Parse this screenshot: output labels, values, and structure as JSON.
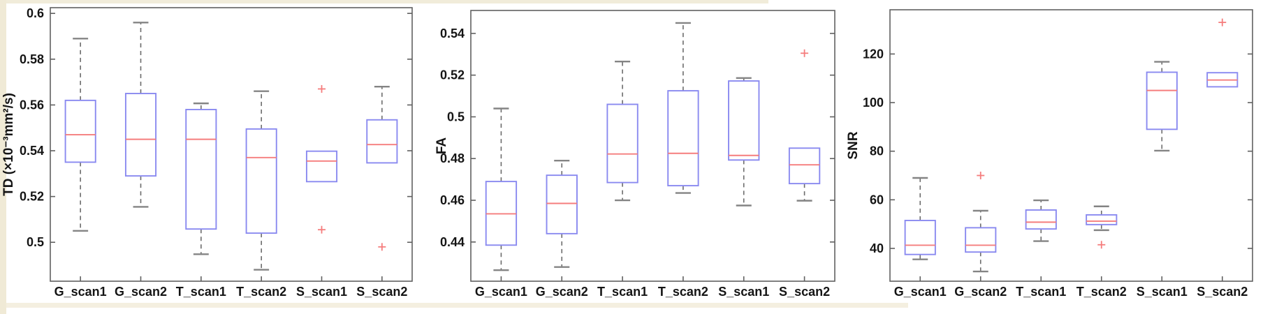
{
  "figure": {
    "margin_color": "#f0ead6",
    "background": "#ffffff",
    "axis_color": "#606060",
    "box_color": "#8a8af0",
    "median_color": "#f57d7d",
    "whisker_color": "#6b6b6b",
    "cap_color": "#848484",
    "outlier_color": "#f57d7d",
    "text_color": "#141414"
  },
  "chart_data": [
    {
      "type": "boxplot",
      "title": "",
      "ylabel": "TD (×10⁻³mm²/s)",
      "xlabel": "",
      "grid": false,
      "legend": null,
      "categories": [
        "G_scan1",
        "G_scan2",
        "T_scan1",
        "T_scan2",
        "S_scan1",
        "S_scan2"
      ],
      "yticks": [
        0.5,
        0.52,
        0.54,
        0.56,
        0.58,
        0.6
      ],
      "ytick_labels": [
        "0.5",
        "0.52",
        "0.54",
        "0.56",
        "0.58",
        "0.6"
      ],
      "ylim": [
        0.483,
        0.6025
      ],
      "boxes": [
        {
          "category": "G_scan1",
          "whisker_low": 0.505,
          "q1": 0.535,
          "median": 0.547,
          "q3": 0.562,
          "whisker_high": 0.589,
          "outliers": []
        },
        {
          "category": "G_scan2",
          "whisker_low": 0.5155,
          "q1": 0.529,
          "median": 0.545,
          "q3": 0.565,
          "whisker_high": 0.596,
          "outliers": []
        },
        {
          "category": "T_scan1",
          "whisker_low": 0.4948,
          "q1": 0.5058,
          "median": 0.545,
          "q3": 0.558,
          "whisker_high": 0.5607,
          "outliers": []
        },
        {
          "category": "T_scan2",
          "whisker_low": 0.488,
          "q1": 0.504,
          "median": 0.537,
          "q3": 0.5495,
          "whisker_high": 0.566,
          "outliers": []
        },
        {
          "category": "S_scan1",
          "whisker_low": 0.5265,
          "q1": 0.5265,
          "median": 0.5355,
          "q3": 0.5398,
          "whisker_high": 0.5398,
          "outliers": [
            0.567,
            0.5055
          ]
        },
        {
          "category": "S_scan2",
          "whisker_low": 0.5347,
          "q1": 0.5347,
          "median": 0.5427,
          "q3": 0.5535,
          "whisker_high": 0.568,
          "outliers": [
            0.498
          ]
        }
      ]
    },
    {
      "type": "boxplot",
      "title": "",
      "ylabel": "FA",
      "xlabel": "",
      "grid": false,
      "legend": null,
      "categories": [
        "G_scan1",
        "G_scan2",
        "T_scan1",
        "T_scan2",
        "S_scan1",
        "S_scan2"
      ],
      "yticks": [
        0.44,
        0.46,
        0.48,
        0.5,
        0.52,
        0.54
      ],
      "ytick_labels": [
        "0.44",
        "0.46",
        "0.48",
        "0.5",
        "0.52",
        "0.54"
      ],
      "ylim": [
        0.4212,
        0.551
      ],
      "boxes": [
        {
          "category": "G_scan1",
          "whisker_low": 0.4265,
          "q1": 0.4385,
          "median": 0.4535,
          "q3": 0.469,
          "whisker_high": 0.504,
          "outliers": []
        },
        {
          "category": "G_scan2",
          "whisker_low": 0.428,
          "q1": 0.444,
          "median": 0.4585,
          "q3": 0.472,
          "whisker_high": 0.479,
          "outliers": []
        },
        {
          "category": "T_scan1",
          "whisker_low": 0.46,
          "q1": 0.4685,
          "median": 0.4822,
          "q3": 0.506,
          "whisker_high": 0.5265,
          "outliers": []
        },
        {
          "category": "T_scan2",
          "whisker_low": 0.4635,
          "q1": 0.467,
          "median": 0.4825,
          "q3": 0.5125,
          "whisker_high": 0.545,
          "outliers": []
        },
        {
          "category": "S_scan1",
          "whisker_low": 0.4575,
          "q1": 0.4793,
          "median": 0.4815,
          "q3": 0.5172,
          "whisker_high": 0.5186,
          "outliers": []
        },
        {
          "category": "S_scan2",
          "whisker_low": 0.4598,
          "q1": 0.468,
          "median": 0.477,
          "q3": 0.485,
          "whisker_high": 0.485,
          "outliers": [
            0.5305
          ]
        }
      ]
    },
    {
      "type": "boxplot",
      "title": "",
      "ylabel": "SNR",
      "xlabel": "",
      "grid": false,
      "legend": null,
      "categories": [
        "G_scan1",
        "G_scan2",
        "T_scan1",
        "T_scan2",
        "S_scan1",
        "S_scan2"
      ],
      "yticks": [
        40,
        60,
        80,
        100,
        120
      ],
      "ytick_labels": [
        "40",
        "60",
        "80",
        "100",
        "120"
      ],
      "ylim": [
        26.5,
        138.2
      ],
      "boxes": [
        {
          "category": "G_scan1",
          "whisker_low": 35.5,
          "q1": 37.5,
          "median": 41.3,
          "q3": 51.5,
          "whisker_high": 69.0,
          "outliers": []
        },
        {
          "category": "G_scan2",
          "whisker_low": 30.5,
          "q1": 38.5,
          "median": 41.3,
          "q3": 48.5,
          "whisker_high": 55.5,
          "outliers": [
            70
          ]
        },
        {
          "category": "T_scan1",
          "whisker_low": 43.0,
          "q1": 48.0,
          "median": 50.8,
          "q3": 55.8,
          "whisker_high": 59.8,
          "outliers": []
        },
        {
          "category": "T_scan2",
          "whisker_low": 47.5,
          "q1": 49.8,
          "median": 51.2,
          "q3": 53.8,
          "whisker_high": 57.3,
          "outliers": [
            41.5
          ]
        },
        {
          "category": "S_scan1",
          "whisker_low": 80.2,
          "q1": 89.0,
          "median": 105.0,
          "q3": 112.5,
          "whisker_high": 116.8,
          "outliers": []
        },
        {
          "category": "S_scan2",
          "whisker_low": 106.5,
          "q1": 106.5,
          "median": 109.3,
          "q3": 112.3,
          "whisker_high": 112.3,
          "outliers": [
            133
          ]
        }
      ]
    }
  ]
}
